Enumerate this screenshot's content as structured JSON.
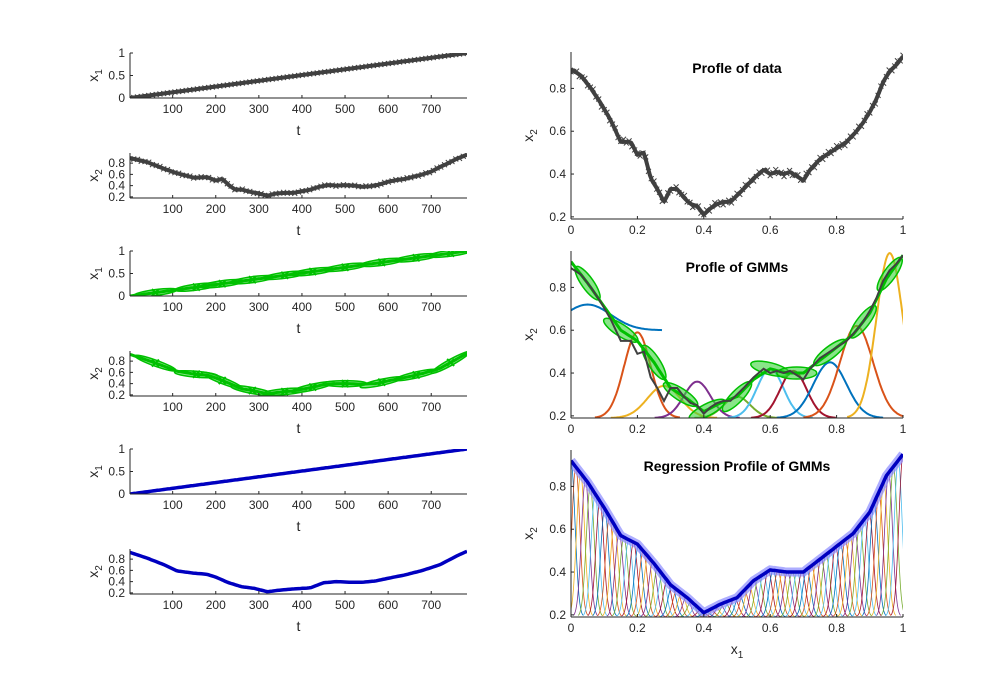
{
  "colors": {
    "data": "#404040",
    "gmm_line": "#00c000",
    "gmm_fill": "#3ad43a",
    "regression": "#0000c0",
    "regression_band": "#8a8aff",
    "components": [
      "#0072bd",
      "#d95319",
      "#edb120",
      "#7e2f8e",
      "#77ac30",
      "#4dbeee",
      "#a2142f"
    ]
  },
  "chart_data": [
    {
      "type": "line",
      "series_name": "x1",
      "xlabel": "t",
      "ylabel": "x",
      "ylabel_sub": "1",
      "xlim": [
        1,
        783
      ],
      "ylim": [
        0,
        1
      ],
      "xticks": [
        100,
        200,
        300,
        400,
        500,
        600,
        700
      ],
      "yticks": [
        0,
        0.5,
        1
      ],
      "style": "data",
      "x": [
        1,
        783
      ],
      "y": [
        0,
        1
      ]
    },
    {
      "type": "line",
      "series_name": "x2",
      "xlabel": "t",
      "ylabel": "x",
      "ylabel_sub": "2",
      "xlim": [
        1,
        783
      ],
      "ylim": [
        0.18,
        0.98
      ],
      "xticks": [
        100,
        200,
        300,
        400,
        500,
        600,
        700
      ],
      "yticks": [
        0.2,
        0.4,
        0.6,
        0.8
      ],
      "style": "data",
      "x": [
        1,
        40,
        80,
        110,
        150,
        180,
        200,
        215,
        230,
        245,
        260,
        280,
        300,
        320,
        340,
        360,
        380,
        400,
        420,
        440,
        460,
        480,
        500,
        520,
        540,
        560,
        580,
        600,
        620,
        640,
        660,
        680,
        700,
        720,
        740,
        760,
        783
      ],
      "y": [
        0.89,
        0.82,
        0.7,
        0.62,
        0.54,
        0.55,
        0.49,
        0.52,
        0.41,
        0.33,
        0.33,
        0.29,
        0.26,
        0.22,
        0.26,
        0.27,
        0.27,
        0.3,
        0.33,
        0.38,
        0.41,
        0.4,
        0.41,
        0.4,
        0.38,
        0.39,
        0.42,
        0.47,
        0.5,
        0.52,
        0.56,
        0.6,
        0.65,
        0.73,
        0.8,
        0.88,
        0.95
      ]
    },
    {
      "type": "line",
      "series_name": "x1",
      "xlabel": "t",
      "ylabel": "x",
      "ylabel_sub": "1",
      "xlim": [
        1,
        783
      ],
      "ylim": [
        0,
        1
      ],
      "xticks": [
        100,
        200,
        300,
        400,
        500,
        600,
        700
      ],
      "yticks": [
        0,
        0.5,
        1
      ],
      "style": "gmm",
      "x": [
        1,
        783
      ],
      "y": [
        0,
        1
      ],
      "markers_x": [
        60,
        155,
        215,
        285,
        360,
        425,
        500,
        585,
        665,
        745
      ]
    },
    {
      "type": "line",
      "series_name": "x2",
      "xlabel": "t",
      "ylabel": "x",
      "ylabel_sub": "2",
      "xlim": [
        1,
        783
      ],
      "ylim": [
        0.18,
        0.98
      ],
      "xticks": [
        100,
        200,
        300,
        400,
        500,
        600,
        700
      ],
      "yticks": [
        0.2,
        0.4,
        0.6,
        0.8
      ],
      "style": "gmm",
      "x": [
        1,
        40,
        80,
        110,
        150,
        180,
        200,
        230,
        260,
        290,
        320,
        350,
        380,
        420,
        450,
        480,
        510,
        540,
        570,
        600,
        640,
        680,
        720,
        760,
        783
      ],
      "y": [
        0.92,
        0.82,
        0.71,
        0.62,
        0.57,
        0.55,
        0.5,
        0.41,
        0.31,
        0.27,
        0.22,
        0.25,
        0.27,
        0.33,
        0.38,
        0.4,
        0.4,
        0.39,
        0.4,
        0.45,
        0.51,
        0.58,
        0.67,
        0.84,
        0.94
      ],
      "markers_x": [
        60,
        155,
        215,
        285,
        360,
        425,
        500,
        585,
        665,
        745
      ]
    },
    {
      "type": "line",
      "series_name": "x1",
      "xlabel": "t",
      "ylabel": "x",
      "ylabel_sub": "1",
      "xlim": [
        1,
        783
      ],
      "ylim": [
        0,
        1
      ],
      "xticks": [
        100,
        200,
        300,
        400,
        500,
        600,
        700
      ],
      "yticks": [
        0,
        0.5,
        1
      ],
      "style": "regression",
      "x": [
        1,
        783
      ],
      "y": [
        0,
        1
      ]
    },
    {
      "type": "line",
      "series_name": "x2",
      "xlabel": "t",
      "ylabel": "x",
      "ylabel_sub": "2",
      "xlim": [
        1,
        783
      ],
      "ylim": [
        0.18,
        0.98
      ],
      "xticks": [
        100,
        200,
        300,
        400,
        500,
        600,
        700
      ],
      "yticks": [
        0.2,
        0.4,
        0.6,
        0.8
      ],
      "style": "regression",
      "x": [
        1,
        40,
        80,
        110,
        150,
        180,
        200,
        230,
        260,
        290,
        320,
        350,
        380,
        420,
        450,
        480,
        510,
        540,
        570,
        600,
        640,
        680,
        720,
        760,
        783
      ],
      "y": [
        0.92,
        0.82,
        0.7,
        0.59,
        0.55,
        0.53,
        0.48,
        0.38,
        0.31,
        0.28,
        0.22,
        0.25,
        0.27,
        0.29,
        0.38,
        0.4,
        0.39,
        0.39,
        0.41,
        0.46,
        0.52,
        0.6,
        0.7,
        0.86,
        0.94
      ]
    },
    {
      "type": "scatter",
      "title": "Profle of data",
      "xlabel": "",
      "ylabel": "x",
      "ylabel_sub": "2",
      "xlim": [
        0,
        1
      ],
      "ylim": [
        0.19,
        0.97
      ],
      "xticks": [
        0,
        0.2,
        0.4,
        0.6,
        0.8,
        1
      ],
      "yticks": [
        0.2,
        0.4,
        0.6,
        0.8
      ],
      "style": "data",
      "x": [
        0,
        0.03,
        0.06,
        0.09,
        0.12,
        0.15,
        0.18,
        0.2,
        0.22,
        0.24,
        0.26,
        0.28,
        0.3,
        0.32,
        0.34,
        0.36,
        0.38,
        0.4,
        0.42,
        0.44,
        0.46,
        0.48,
        0.5,
        0.52,
        0.55,
        0.58,
        0.6,
        0.62,
        0.64,
        0.66,
        0.68,
        0.7,
        0.72,
        0.75,
        0.78,
        0.8,
        0.83,
        0.86,
        0.88,
        0.9,
        0.92,
        0.94,
        0.96,
        0.98,
        1.0
      ],
      "y": [
        0.89,
        0.86,
        0.8,
        0.73,
        0.65,
        0.55,
        0.55,
        0.49,
        0.5,
        0.38,
        0.33,
        0.27,
        0.33,
        0.33,
        0.29,
        0.26,
        0.25,
        0.21,
        0.24,
        0.26,
        0.27,
        0.27,
        0.3,
        0.33,
        0.38,
        0.42,
        0.4,
        0.41,
        0.4,
        0.41,
        0.39,
        0.37,
        0.42,
        0.47,
        0.5,
        0.52,
        0.55,
        0.6,
        0.64,
        0.69,
        0.75,
        0.83,
        0.88,
        0.91,
        0.95
      ]
    },
    {
      "type": "line",
      "title": "Profle of GMMs",
      "xlabel": "",
      "ylabel": "x",
      "ylabel_sub": "2",
      "xlim": [
        0,
        1
      ],
      "ylim": [
        0.19,
        0.97
      ],
      "xticks": [
        0,
        0.2,
        0.4,
        0.6,
        0.8,
        1
      ],
      "yticks": [
        0.2,
        0.4,
        0.6,
        0.8
      ],
      "style": "gmm",
      "x": [
        0,
        0.05,
        0.1,
        0.15,
        0.2,
        0.25,
        0.3,
        0.35,
        0.4,
        0.45,
        0.5,
        0.55,
        0.6,
        0.65,
        0.7,
        0.75,
        0.8,
        0.85,
        0.9,
        0.95,
        1.0
      ],
      "y": [
        0.92,
        0.82,
        0.71,
        0.6,
        0.55,
        0.45,
        0.33,
        0.28,
        0.22,
        0.26,
        0.29,
        0.37,
        0.42,
        0.4,
        0.4,
        0.46,
        0.52,
        0.58,
        0.68,
        0.84,
        0.95
      ],
      "components": [
        {
          "mu": 0.05,
          "sigma": 0.07,
          "base": 0.6,
          "amp": 0.12
        },
        {
          "mu": 0.2,
          "sigma": 0.04,
          "base": 0.19,
          "amp": 0.4
        },
        {
          "mu": 0.28,
          "sigma": 0.05,
          "base": 0.19,
          "amp": 0.15
        },
        {
          "mu": 0.38,
          "sigma": 0.04,
          "base": 0.19,
          "amp": 0.17
        },
        {
          "mu": 0.5,
          "sigma": 0.04,
          "base": 0.19,
          "amp": 0.1
        },
        {
          "mu": 0.6,
          "sigma": 0.04,
          "base": 0.19,
          "amp": 0.23
        },
        {
          "mu": 0.67,
          "sigma": 0.04,
          "base": 0.19,
          "amp": 0.22
        },
        {
          "mu": 0.78,
          "sigma": 0.05,
          "base": 0.19,
          "amp": 0.26
        },
        {
          "mu": 0.86,
          "sigma": 0.05,
          "base": 0.19,
          "amp": 0.43
        },
        {
          "mu": 0.96,
          "sigma": 0.04,
          "base": 0.19,
          "amp": 0.77
        }
      ]
    },
    {
      "type": "line",
      "title": "Regression Profile of GMMs",
      "xlabel": "x",
      "xlabel_sub": "1",
      "ylabel": "x",
      "ylabel_sub": "2",
      "xlim": [
        0,
        1
      ],
      "ylim": [
        0.19,
        0.97
      ],
      "xticks": [
        0,
        0.2,
        0.4,
        0.6,
        0.8,
        1
      ],
      "yticks": [
        0.2,
        0.4,
        0.6,
        0.8
      ],
      "style": "regression",
      "x": [
        0,
        0.05,
        0.1,
        0.15,
        0.2,
        0.25,
        0.3,
        0.35,
        0.4,
        0.45,
        0.5,
        0.55,
        0.6,
        0.65,
        0.7,
        0.75,
        0.8,
        0.85,
        0.9,
        0.95,
        1.0
      ],
      "y": [
        0.92,
        0.82,
        0.7,
        0.57,
        0.53,
        0.44,
        0.34,
        0.28,
        0.21,
        0.25,
        0.28,
        0.36,
        0.41,
        0.4,
        0.4,
        0.46,
        0.52,
        0.58,
        0.68,
        0.85,
        0.95
      ]
    }
  ]
}
